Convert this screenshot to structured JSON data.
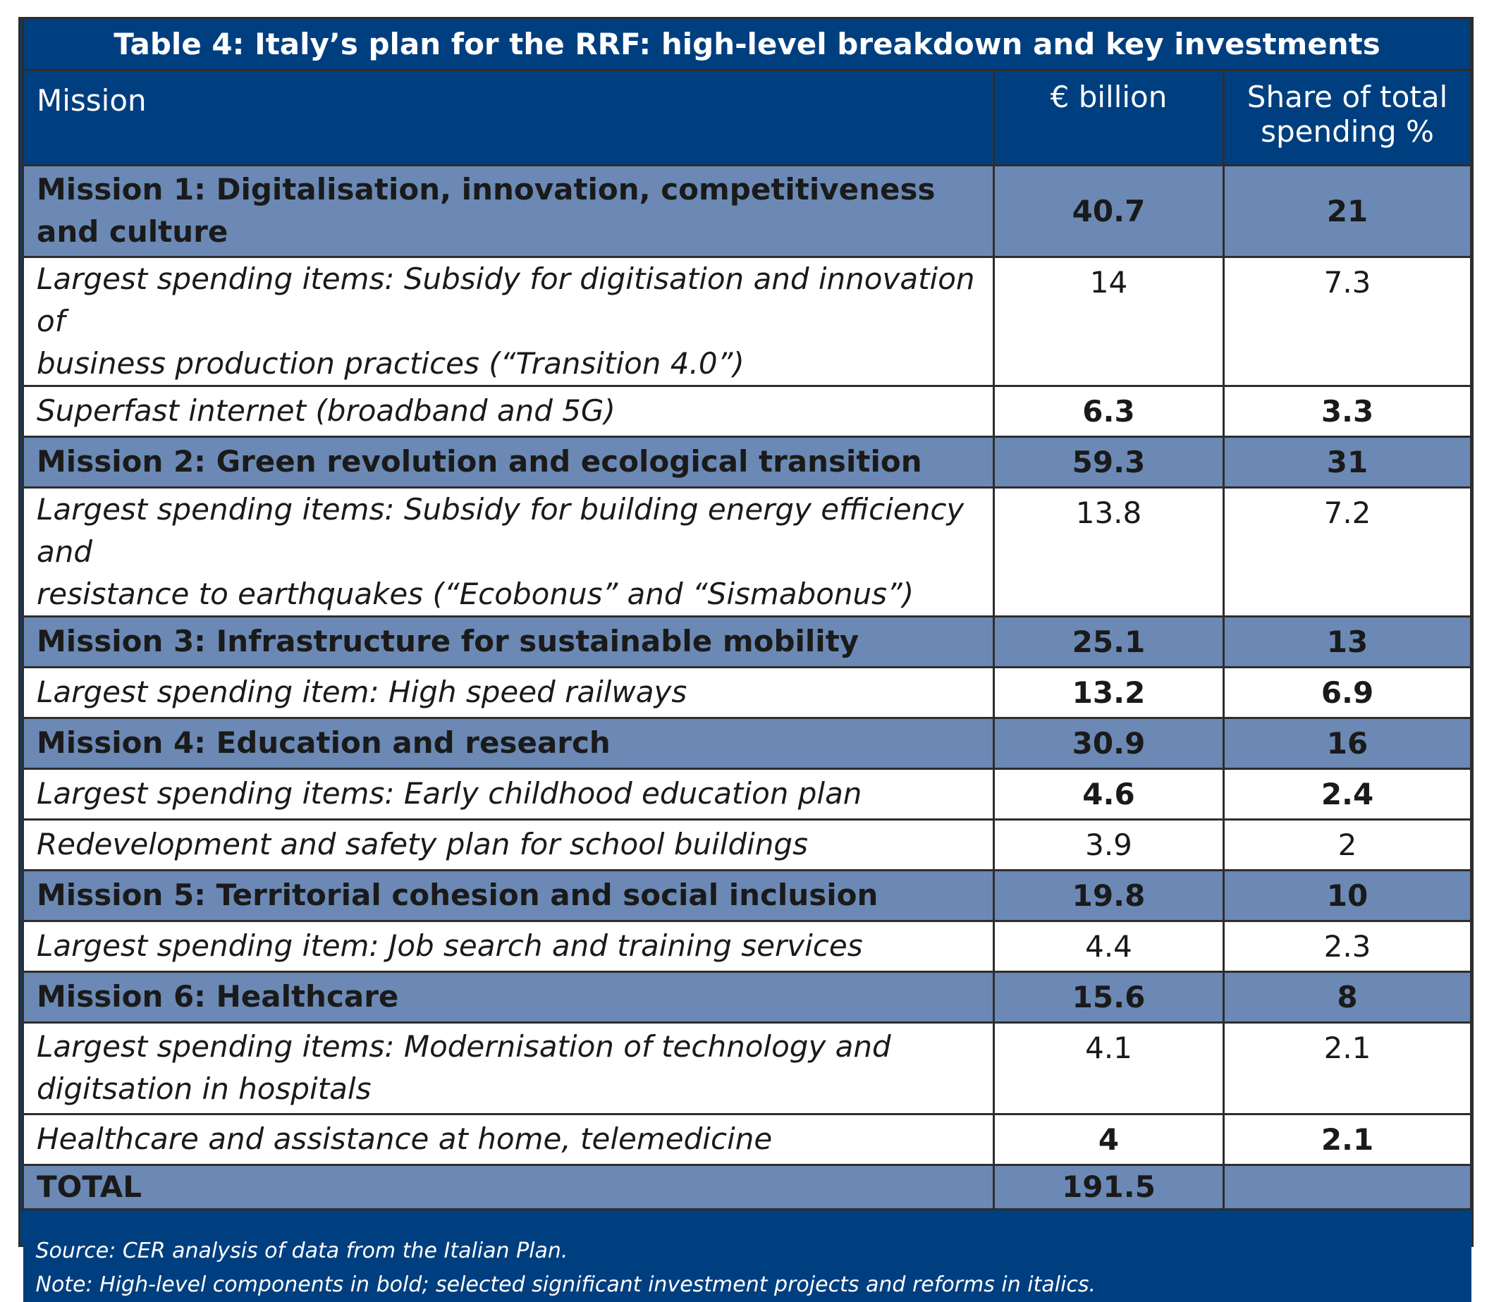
{
  "title": "Table 4: Italy’s plan for the RRF: high-level breakdown and key investments",
  "headers": {
    "mission": "Mission",
    "billion": "€ billion",
    "share_line1": "Share of total",
    "share_line2": "spending %"
  },
  "rows": [
    {
      "kind": "mission",
      "label_line1": "Mission 1: Digitalisation, innovation, competitiveness",
      "label_line2": "and culture",
      "billion": "40.7",
      "share": "21",
      "bold_values": true
    },
    {
      "kind": "item",
      "label_line1": "Largest spending items: Subsidy for digitisation and innovation of",
      "label_line2": "business production practices (“Transition 4.0”)",
      "billion": "14",
      "share": "7.3",
      "bold_values": false
    },
    {
      "kind": "item",
      "label_line1": "Superfast internet (broadband and 5G)",
      "label_line2": "",
      "billion": "6.3",
      "share": "3.3",
      "bold_values": true
    },
    {
      "kind": "mission",
      "label_line1": "Mission 2: Green revolution and ecological transition",
      "label_line2": "",
      "billion": "59.3",
      "share": "31",
      "bold_values": true
    },
    {
      "kind": "item",
      "label_line1": "Largest spending items:  Subsidy for building energy efficiency and",
      "label_line2": "resistance to earthquakes (“Ecobonus” and “Sismabonus”)",
      "billion": "13.8",
      "share": "7.2",
      "bold_values": false
    },
    {
      "kind": "mission",
      "label_line1": "Mission 3: Infrastructure for sustainable mobility",
      "label_line2": "",
      "billion": "25.1",
      "share": "13",
      "bold_values": true
    },
    {
      "kind": "item",
      "label_line1": "Largest spending item: High speed railways",
      "label_line2": "",
      "billion": "13.2",
      "share": "6.9",
      "bold_values": true
    },
    {
      "kind": "mission",
      "label_line1": "Mission 4: Education and research",
      "label_line2": "",
      "billion": "30.9",
      "share": "16",
      "bold_values": true
    },
    {
      "kind": "item",
      "label_line1": "Largest spending items: Early childhood education plan",
      "label_line2": "",
      "billion": "4.6",
      "share": "2.4",
      "bold_values": true
    },
    {
      "kind": "item",
      "label_line1": "Redevelopment and safety plan for school buildings",
      "label_line2": "",
      "billion": "3.9",
      "share": "2",
      "bold_values": false
    },
    {
      "kind": "mission",
      "label_line1": "Mission 5: Territorial cohesion and social inclusion",
      "label_line2": "",
      "billion": "19.8",
      "share": "10",
      "bold_values": true
    },
    {
      "kind": "item",
      "label_line1": "Largest spending item: Job search and training services",
      "label_line2": "",
      "billion": "4.4",
      "share": "2.3",
      "bold_values": false
    },
    {
      "kind": "mission",
      "label_line1": "Mission 6: Healthcare",
      "label_line2": "",
      "billion": "15.6",
      "share": "8",
      "bold_values": true
    },
    {
      "kind": "item",
      "label_line1": "Largest spending items: Modernisation of technology and",
      "label_line2": "digitsation in hospitals",
      "billion": "4.1",
      "share": "2.1",
      "bold_values": false
    },
    {
      "kind": "item",
      "label_line1": "Healthcare and assistance at home, telemedicine",
      "label_line2": "",
      "billion": "4",
      "share": "2.1",
      "bold_values": true
    }
  ],
  "total": {
    "label": "TOTAL",
    "billion": "191.5",
    "share": ""
  },
  "footer": {
    "source": "Source: CER analysis of data from the Italian Plan.",
    "note": "Note: High-level components in bold; selected significant investment projects and reforms in italics."
  },
  "colors": {
    "header_bg": "#003F7F",
    "mission_bg": "#6B89B4",
    "item_bg": "#ffffff"
  }
}
